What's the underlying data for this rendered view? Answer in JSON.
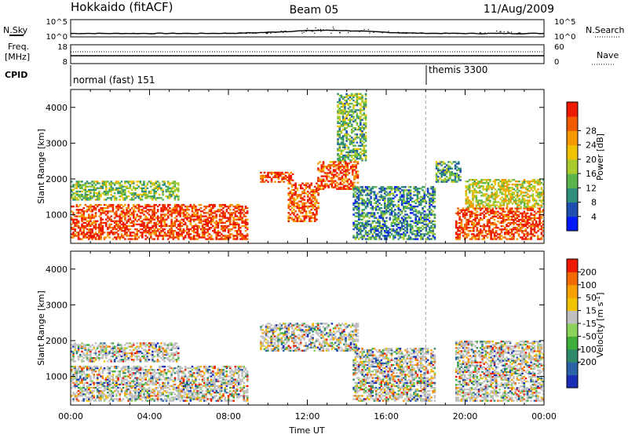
{
  "header": {
    "title": "Hokkaido (fitACF)",
    "beam": "Beam 05",
    "date": "11/Aug/2009"
  },
  "noise_panel": {
    "left_label": "N.Sky",
    "right_label": "N.Search",
    "left_ticks": [
      "10^5",
      "10^0"
    ],
    "right_ticks": [
      "10^5",
      "10^0"
    ]
  },
  "freq_panel": {
    "label_line1": "Freq.",
    "label_line2": "[MHz]",
    "left_ticks": [
      "18",
      "8"
    ],
    "right_ticks": [
      "60",
      "0"
    ],
    "right_label": "Nave"
  },
  "cpid_panel": {
    "label": "CPID",
    "modes": [
      {
        "name": "normal (fast) 151",
        "start_hour": 0
      },
      {
        "name": "themis 3300",
        "start_hour": 18
      }
    ]
  },
  "chart_data": [
    {
      "type": "heatmap",
      "name": "power",
      "ylabel": "Slant Range [km]",
      "xlabel": "Time UT",
      "xlim": [
        0,
        24
      ],
      "ylim": [
        200,
        4500
      ],
      "y_ticks": [
        1000,
        2000,
        3000,
        4000
      ],
      "colorbar": {
        "label": "Power [dB]",
        "ticks": [
          "4",
          "8",
          "12",
          "16",
          "20",
          "24",
          "28"
        ],
        "colors": [
          "#0018ff",
          "#1f4fb0",
          "#2f8f7a",
          "#5bb54b",
          "#aacb2e",
          "#f0c200",
          "#f79a00",
          "#f25a00",
          "#ee1a00"
        ]
      },
      "echo_regions": [
        {
          "t0": 0.0,
          "t1": 9.0,
          "r0": 300,
          "r1": 1300,
          "level": 0.9
        },
        {
          "t0": 0.0,
          "t1": 5.5,
          "r0": 1400,
          "r1": 1950,
          "level": 0.45
        },
        {
          "t0": 9.6,
          "t1": 11.3,
          "r0": 1900,
          "r1": 2200,
          "level": 0.9
        },
        {
          "t0": 11.0,
          "t1": 12.6,
          "r0": 800,
          "r1": 1900,
          "level": 0.85
        },
        {
          "t0": 12.5,
          "t1": 14.6,
          "r0": 1700,
          "r1": 2500,
          "level": 0.85
        },
        {
          "t0": 13.5,
          "t1": 15.0,
          "r0": 2500,
          "r1": 4400,
          "level": 0.4
        },
        {
          "t0": 14.3,
          "t1": 18.5,
          "r0": 300,
          "r1": 1800,
          "level": 0.3
        },
        {
          "t0": 18.5,
          "t1": 19.8,
          "r0": 1900,
          "r1": 2500,
          "level": 0.35
        },
        {
          "t0": 19.5,
          "t1": 24.0,
          "r0": 300,
          "r1": 1200,
          "level": 0.9
        },
        {
          "t0": 20.0,
          "t1": 24.0,
          "r0": 1200,
          "r1": 2000,
          "level": 0.55
        }
      ]
    },
    {
      "type": "heatmap",
      "name": "velocity",
      "ylabel": "Slant Range [km]",
      "xlabel": "Time UT",
      "xlim": [
        0,
        24
      ],
      "ylim": [
        200,
        4500
      ],
      "y_ticks": [
        1000,
        2000,
        3000,
        4000
      ],
      "x_ticks": [
        "00:00",
        "04:00",
        "08:00",
        "12:00",
        "16:00",
        "20:00",
        "00:00"
      ],
      "colorbar": {
        "label": "Velocity [m s^-1]",
        "ticks": [
          "200",
          "100",
          "50",
          "15",
          "-15",
          "-50",
          "-100",
          "-200"
        ],
        "colors": [
          "#1a2fb5",
          "#2a63a8",
          "#2f8a6a",
          "#3fae3a",
          "#8bd35a",
          "#c0c0c0",
          "#f0c200",
          "#f7a000",
          "#f26a00",
          "#ee1a00"
        ]
      },
      "echo_regions": [
        {
          "t0": 0.0,
          "t1": 9.0,
          "r0": 300,
          "r1": 1300,
          "level": 0.5
        },
        {
          "t0": 0.0,
          "t1": 5.5,
          "r0": 1400,
          "r1": 1950,
          "level": 0.5
        },
        {
          "t0": 9.6,
          "t1": 14.6,
          "r0": 1700,
          "r1": 2500,
          "level": 0.5
        },
        {
          "t0": 14.3,
          "t1": 18.5,
          "r0": 300,
          "r1": 1800,
          "level": 0.6
        },
        {
          "t0": 19.5,
          "t1": 24.0,
          "r0": 300,
          "r1": 2000,
          "level": 0.5
        }
      ]
    }
  ]
}
